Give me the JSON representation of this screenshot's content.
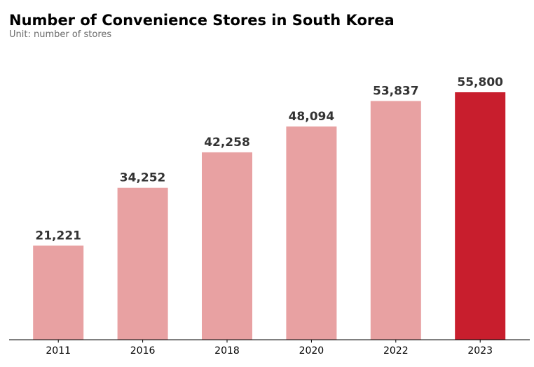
{
  "chart_data": {
    "type": "bar",
    "title": "Number of Convenience Stores in South Korea",
    "subtitle": "Unit: number of stores",
    "xlabel": "",
    "ylabel": "",
    "categories": [
      "2011",
      "2016",
      "2018",
      "2020",
      "2022",
      "2023"
    ],
    "values": [
      21221,
      34252,
      42258,
      48094,
      53837,
      55800
    ],
    "value_labels": [
      "21,221",
      "34,252",
      "42,258",
      "48,094",
      "53,837",
      "55,800"
    ],
    "ylim": [
      0,
      63000
    ],
    "grid": false,
    "legend": "none",
    "highlight_index": 5,
    "colors": {
      "bar": "#e8a1a2",
      "highlight": "#c81e2d",
      "axis": "#000000",
      "label": "#333333"
    }
  }
}
